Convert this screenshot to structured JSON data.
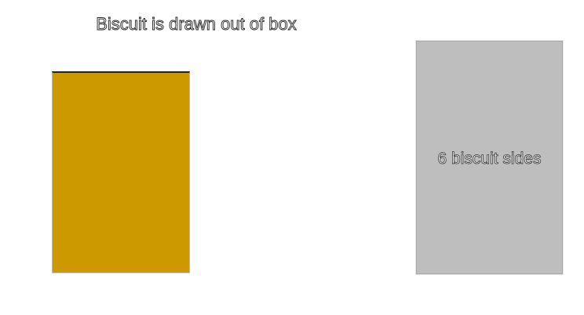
{
  "title": "Biscuit is drawn out of box",
  "box": {
    "color": "#cc9a00",
    "outline_color": "#222222"
  },
  "biscuit": {
    "label": "6 biscuit sides",
    "card_color": "#bebebe"
  }
}
